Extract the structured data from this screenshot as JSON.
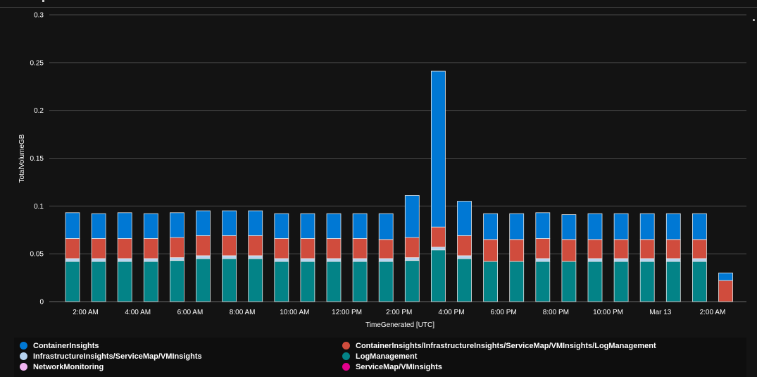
{
  "chart_data": {
    "type": "bar",
    "stacked": true,
    "title": "",
    "xlabel": "TimeGenerated [UTC]",
    "ylabel": "TotalVolumeGB",
    "ylim": [
      0,
      0.3
    ],
    "y_ticks": [
      "0",
      "0.05",
      "0.1",
      "0.15",
      "0.2",
      "0.25",
      "0.3"
    ],
    "x_ticks": [
      {
        "label": "2:00 AM",
        "between": [
          0,
          1
        ]
      },
      {
        "label": "4:00 AM",
        "between": [
          2,
          3
        ]
      },
      {
        "label": "6:00 AM",
        "between": [
          4,
          5
        ]
      },
      {
        "label": "8:00 AM",
        "between": [
          6,
          7
        ]
      },
      {
        "label": "10:00 AM",
        "between": [
          8,
          9
        ]
      },
      {
        "label": "12:00 PM",
        "between": [
          10,
          11
        ]
      },
      {
        "label": "2:00 PM",
        "between": [
          12,
          13
        ]
      },
      {
        "label": "4:00 PM",
        "between": [
          14,
          15
        ]
      },
      {
        "label": "6:00 PM",
        "between": [
          16,
          17
        ]
      },
      {
        "label": "8:00 PM",
        "between": [
          18,
          19
        ]
      },
      {
        "label": "10:00 PM",
        "between": [
          20,
          21
        ]
      },
      {
        "label": "Mar 13",
        "between": [
          22,
          23
        ]
      },
      {
        "label": "2:00 AM",
        "between": [
          24,
          25
        ]
      }
    ],
    "grid": true,
    "legend_position": "bottom",
    "series": [
      {
        "name": "LogManagement",
        "color": "#038387",
        "values": [
          0.042,
          0.042,
          0.042,
          0.042,
          0.043,
          0.045,
          0.045,
          0.045,
          0.042,
          0.042,
          0.042,
          0.042,
          0.042,
          0.043,
          0.054,
          0.045,
          0.042,
          0.042,
          0.042,
          0.042,
          0.042,
          0.042,
          0.042,
          0.042,
          0.042,
          0.0
        ]
      },
      {
        "name": "InfrastructureInsights/ServiceMap/VMInsights",
        "color": "#b6d3f0",
        "values": [
          0.003,
          0.003,
          0.003,
          0.003,
          0.003,
          0.003,
          0.003,
          0.003,
          0.003,
          0.003,
          0.003,
          0.003,
          0.003,
          0.003,
          0.003,
          0.003,
          0.0,
          0.0,
          0.003,
          0.0,
          0.003,
          0.003,
          0.003,
          0.003,
          0.003,
          0.0
        ]
      },
      {
        "name": "ServiceMap/VMInsights",
        "color": "#e3008c",
        "values": [
          0,
          0,
          0,
          0,
          0,
          0,
          0,
          0,
          0,
          0,
          0,
          0,
          0,
          0,
          0,
          0,
          0,
          0,
          0,
          0,
          0,
          0,
          0,
          0,
          0,
          0
        ]
      },
      {
        "name": "NetworkMonitoring",
        "color": "#f0b3f0",
        "values": [
          0,
          0,
          0,
          0,
          0,
          0,
          0,
          0,
          0,
          0,
          0,
          0,
          0,
          0,
          0,
          0,
          0,
          0,
          0,
          0,
          0,
          0,
          0,
          0,
          0,
          0
        ]
      },
      {
        "name": "ContainerInsights/InfrastructureInsights/ServiceMap/VMInsights/LogManagement",
        "color": "#d04c3d",
        "values": [
          0.021,
          0.021,
          0.021,
          0.021,
          0.021,
          0.021,
          0.021,
          0.021,
          0.021,
          0.021,
          0.021,
          0.021,
          0.02,
          0.021,
          0.021,
          0.021,
          0.023,
          0.023,
          0.021,
          0.023,
          0.02,
          0.02,
          0.02,
          0.02,
          0.02,
          0.022
        ]
      },
      {
        "name": "ContainerInsights",
        "color": "#0078d4",
        "values": [
          0.027,
          0.026,
          0.027,
          0.026,
          0.026,
          0.026,
          0.026,
          0.026,
          0.026,
          0.026,
          0.026,
          0.026,
          0.027,
          0.044,
          0.163,
          0.036,
          0.027,
          0.027,
          0.027,
          0.026,
          0.027,
          0.027,
          0.027,
          0.027,
          0.027,
          0.008
        ]
      }
    ]
  },
  "legend": [
    {
      "label": "ContainerInsights",
      "color": "#0078d4"
    },
    {
      "label": "ContainerInsights/InfrastructureInsights/ServiceMap/VMInsights/LogManagement",
      "color": "#d04c3d"
    },
    {
      "label": "InfrastructureInsights/ServiceMap/VMInsights",
      "color": "#b6d3f0"
    },
    {
      "label": "LogManagement",
      "color": "#038387"
    },
    {
      "label": "NetworkMonitoring",
      "color": "#f0b3f0"
    },
    {
      "label": "ServiceMap/VMInsights",
      "color": "#e3008c"
    }
  ]
}
